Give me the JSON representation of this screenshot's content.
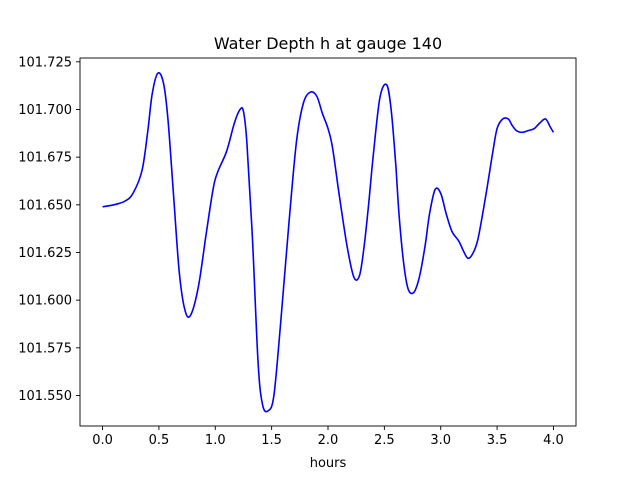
{
  "chart_data": {
    "type": "line",
    "title": "Water Depth h at gauge 140",
    "xlabel": "hours",
    "ylabel": "",
    "xlim": [
      -0.2,
      4.2
    ],
    "ylim": [
      101.534,
      101.727
    ],
    "xticks": [
      0.0,
      0.5,
      1.0,
      1.5,
      2.0,
      2.5,
      3.0,
      3.5,
      4.0
    ],
    "xtick_labels": [
      "0.0",
      "0.5",
      "1.0",
      "1.5",
      "2.0",
      "2.5",
      "3.0",
      "3.5",
      "4.0"
    ],
    "yticks": [
      101.55,
      101.575,
      101.6,
      101.625,
      101.65,
      101.675,
      101.7,
      101.725
    ],
    "ytick_labels": [
      "101.550",
      "101.575",
      "101.600",
      "101.625",
      "101.650",
      "101.675",
      "101.700",
      "101.725"
    ],
    "grid": false,
    "legend": "none",
    "series": [
      {
        "color": "#0000ff",
        "x": [
          0.0,
          0.1,
          0.2,
          0.27,
          0.35,
          0.4,
          0.44,
          0.49,
          0.54,
          0.58,
          0.63,
          0.68,
          0.73,
          0.78,
          0.85,
          0.92,
          0.98,
          1.02,
          1.1,
          1.17,
          1.22,
          1.25,
          1.28,
          1.33,
          1.38,
          1.42,
          1.47,
          1.52,
          1.58,
          1.65,
          1.72,
          1.78,
          1.84,
          1.9,
          1.95,
          2.0,
          2.04,
          2.1,
          2.17,
          2.23,
          2.28,
          2.32,
          2.36,
          2.4,
          2.46,
          2.52,
          2.56,
          2.6,
          2.63,
          2.67,
          2.71,
          2.76,
          2.81,
          2.86,
          2.9,
          2.95,
          3.0,
          3.05,
          3.1,
          3.16,
          3.2,
          3.24,
          3.28,
          3.33,
          3.4,
          3.46,
          3.5,
          3.55,
          3.6,
          3.63,
          3.67,
          3.72,
          3.78,
          3.83,
          3.88,
          3.93,
          3.97,
          4.0
        ],
        "y": [
          101.649,
          101.65,
          101.652,
          101.656,
          101.668,
          101.688,
          101.708,
          101.719,
          101.714,
          101.695,
          101.655,
          101.615,
          101.595,
          101.592,
          101.607,
          101.635,
          101.658,
          101.667,
          101.678,
          101.693,
          101.7,
          101.699,
          101.683,
          101.632,
          101.567,
          101.545,
          101.542,
          101.55,
          101.588,
          101.638,
          101.683,
          101.703,
          101.709,
          101.707,
          101.698,
          101.69,
          101.68,
          101.655,
          101.628,
          101.612,
          101.613,
          101.628,
          101.65,
          101.675,
          101.706,
          101.713,
          101.7,
          101.672,
          101.645,
          101.62,
          101.606,
          101.604,
          101.612,
          101.628,
          101.645,
          101.658,
          101.656,
          101.645,
          101.636,
          101.631,
          101.626,
          101.622,
          101.624,
          101.632,
          101.655,
          101.677,
          101.69,
          101.695,
          101.695,
          101.692,
          101.689,
          101.688,
          101.689,
          101.69,
          101.693,
          101.695,
          101.691,
          101.688
        ]
      }
    ]
  }
}
